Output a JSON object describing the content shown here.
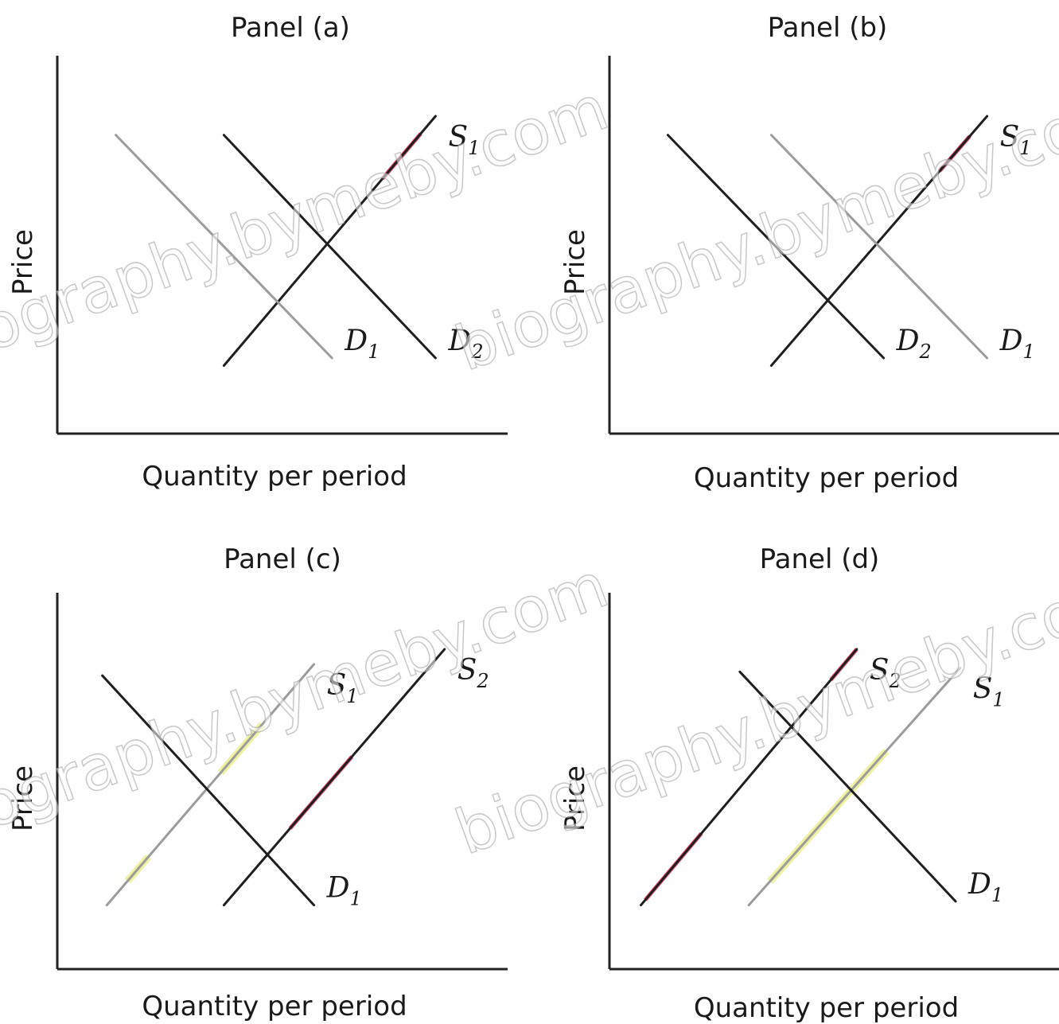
{
  "watermark": "biography.bymeby.com",
  "colors": {
    "dark_line": "#1f1f1f",
    "light_line": "#9c9c9c",
    "highlight_red": "#e64d6e",
    "highlight_yellow": "#eef2a0"
  },
  "chart_data": [
    {
      "type": "line",
      "title": "Panel (a)",
      "xlabel": "Quantity per period",
      "ylabel": "Price",
      "xlim": [
        0,
        100
      ],
      "ylim": [
        0,
        100
      ],
      "series": [
        {
          "name": "S",
          "sub": "1",
          "style": "dark",
          "x": [
            37,
            84
          ],
          "y": [
            18,
            84
          ],
          "highlight": {
            "color": "red",
            "from": 0.75,
            "to": 0.93
          }
        },
        {
          "name": "D",
          "sub": "1",
          "style": "light",
          "x": [
            13,
            61
          ],
          "y": [
            79,
            20
          ]
        },
        {
          "name": "D",
          "sub": "2",
          "style": "dark",
          "x": [
            37,
            84
          ],
          "y": [
            79,
            20
          ]
        }
      ]
    },
    {
      "type": "line",
      "title": "Panel (b)",
      "xlabel": "Quantity per period",
      "ylabel": "Price",
      "xlim": [
        0,
        100
      ],
      "ylim": [
        0,
        100
      ],
      "series": [
        {
          "name": "S",
          "sub": "1",
          "style": "dark",
          "x": [
            36,
            84
          ],
          "y": [
            18,
            84
          ],
          "highlight": {
            "color": "red",
            "from": 0.78,
            "to": 0.92
          }
        },
        {
          "name": "D",
          "sub": "1",
          "style": "light",
          "x": [
            36,
            84
          ],
          "y": [
            79,
            20
          ]
        },
        {
          "name": "D",
          "sub": "2",
          "style": "dark",
          "x": [
            13,
            61
          ],
          "y": [
            79,
            20
          ]
        }
      ]
    },
    {
      "type": "line",
      "title": "Panel (c)",
      "xlabel": "Quantity per period",
      "ylabel": "Price",
      "xlim": [
        0,
        100
      ],
      "ylim": [
        0,
        100
      ],
      "series": [
        {
          "name": "S",
          "sub": "1",
          "style": "light",
          "x": [
            11,
            57
          ],
          "y": [
            17,
            81
          ],
          "highlights": [
            {
              "color": "yellow",
              "from": 0.1,
              "to": 0.2
            },
            {
              "color": "yellow",
              "from": 0.55,
              "to": 0.75
            }
          ]
        },
        {
          "name": "S",
          "sub": "2",
          "style": "dark",
          "x": [
            37,
            86
          ],
          "y": [
            17,
            85
          ],
          "highlight": {
            "color": "red",
            "from": 0.3,
            "to": 0.58
          }
        },
        {
          "name": "D",
          "sub": "1",
          "style": "dark",
          "x": [
            10,
            57
          ],
          "y": [
            78,
            17
          ]
        }
      ]
    },
    {
      "type": "line",
      "title": "Panel (d)",
      "xlabel": "Quantity per period",
      "ylabel": "Price",
      "xlim": [
        0,
        100
      ],
      "ylim": [
        0,
        100
      ],
      "series": [
        {
          "name": "S",
          "sub": "1",
          "style": "light",
          "x": [
            31,
            78
          ],
          "y": [
            17,
            80
          ],
          "highlight": {
            "color": "yellow",
            "from": 0.1,
            "to": 0.65
          }
        },
        {
          "name": "S",
          "sub": "2",
          "style": "dark",
          "x": [
            7,
            55
          ],
          "y": [
            17,
            85
          ],
          "highlights": [
            {
              "color": "red",
              "from": 0.02,
              "to": 0.28
            },
            {
              "color": "red",
              "from": 0.88,
              "to": 1.0
            }
          ]
        },
        {
          "name": "D",
          "sub": "1",
          "style": "dark",
          "x": [
            29,
            77
          ],
          "y": [
            79,
            18
          ]
        }
      ]
    }
  ]
}
